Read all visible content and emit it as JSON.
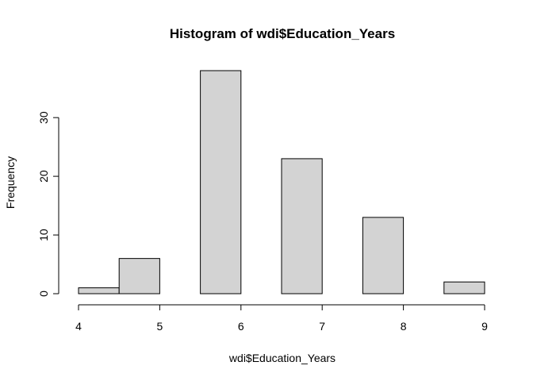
{
  "chart_data": {
    "type": "bar",
    "title": "Histogram of wdi$Education_Years",
    "xlabel": "wdi$Education_Years",
    "ylabel": "Frequency",
    "bins": [
      {
        "start": 4.0,
        "end": 4.5,
        "count": 1
      },
      {
        "start": 4.5,
        "end": 5.0,
        "count": 6
      },
      {
        "start": 5.0,
        "end": 5.5,
        "count": 0
      },
      {
        "start": 5.5,
        "end": 6.0,
        "count": 38
      },
      {
        "start": 6.0,
        "end": 6.5,
        "count": 0
      },
      {
        "start": 6.5,
        "end": 7.0,
        "count": 23
      },
      {
        "start": 7.0,
        "end": 7.5,
        "count": 0
      },
      {
        "start": 7.5,
        "end": 8.0,
        "count": 13
      },
      {
        "start": 8.0,
        "end": 8.5,
        "count": 0
      },
      {
        "start": 8.5,
        "end": 9.0,
        "count": 2
      }
    ],
    "xlim": [
      4,
      9
    ],
    "ylim": [
      0,
      38
    ],
    "x_ticks": [
      4,
      5,
      6,
      7,
      8,
      9
    ],
    "y_ticks": [
      0,
      10,
      20,
      30
    ],
    "grid": false,
    "bar_color": "#d3d3d3",
    "edge_color": "#000000"
  }
}
